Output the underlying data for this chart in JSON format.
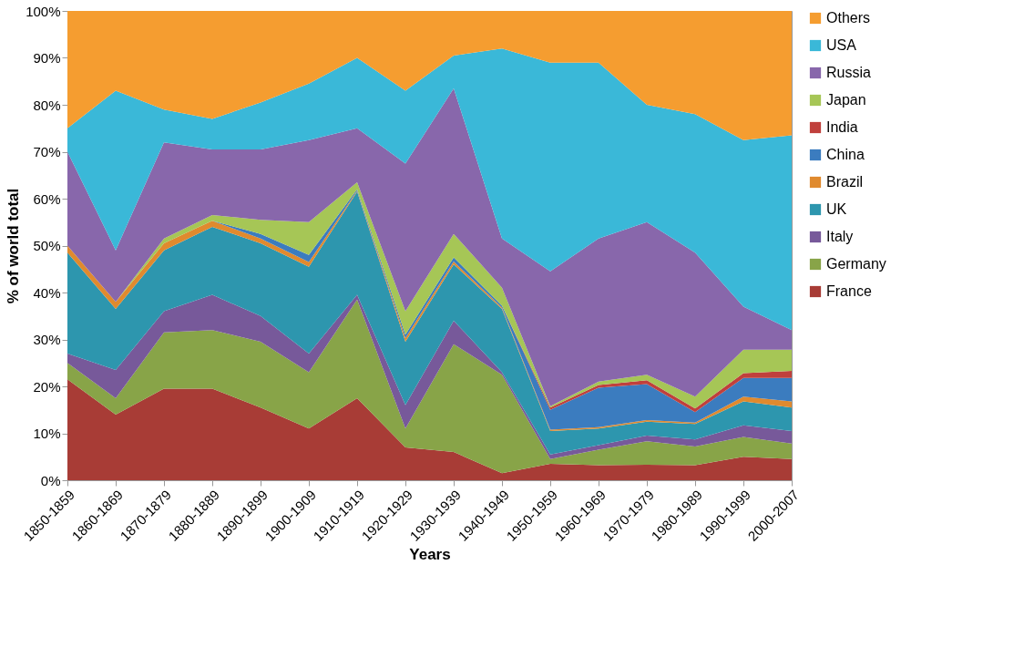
{
  "chart_data": {
    "type": "area",
    "stacked": true,
    "xlabel": "Years",
    "ylabel": "% of world total",
    "categories": [
      "1850-1859",
      "1860-1869",
      "1870-1879",
      "1880-1889",
      "1890-1899",
      "1900-1909",
      "1910-1919",
      "1920-1929",
      "1930-1939",
      "1940-1949",
      "1950-1959",
      "1960-1969",
      "1970-1979",
      "1980-1989",
      "1990-1999",
      "2000-2007"
    ],
    "ylim": [
      0,
      100
    ],
    "yticks": [
      {
        "value": 0,
        "label": "0%"
      },
      {
        "value": 10,
        "label": "10%"
      },
      {
        "value": 20,
        "label": "20%"
      },
      {
        "value": 30,
        "label": "30%"
      },
      {
        "value": 40,
        "label": "40%"
      },
      {
        "value": 50,
        "label": "50%"
      },
      {
        "value": 60,
        "label": "60%"
      },
      {
        "value": 70,
        "label": "70%"
      },
      {
        "value": 80,
        "label": "80%"
      },
      {
        "value": 90,
        "label": "90%"
      },
      {
        "value": 100,
        "label": "100%"
      }
    ],
    "legend": "right",
    "grid": false,
    "series": [
      {
        "name": "France",
        "color": "#a83c36",
        "values": [
          21.5,
          14,
          19.5,
          19.5,
          15.5,
          11,
          17.5,
          7,
          6,
          1.5,
          3.5,
          3.2,
          3.3,
          3.2,
          5,
          4.5
        ]
      },
      {
        "name": "Germany",
        "color": "#88a448",
        "values": [
          3.5,
          3.5,
          12,
          12.5,
          14,
          12,
          21,
          4,
          23,
          21,
          1,
          3.3,
          5,
          4,
          4.2,
          3.3
        ]
      },
      {
        "name": "Italy",
        "color": "#77599a",
        "values": [
          2,
          6,
          4.5,
          7.5,
          5.5,
          4,
          1,
          5,
          5,
          0.5,
          1,
          1,
          1.2,
          1.5,
          2.5,
          2.7
        ]
      },
      {
        "name": "UK",
        "color": "#2d96ae",
        "values": [
          21.5,
          13,
          13,
          14.5,
          15.5,
          18.5,
          22,
          13.5,
          12,
          13.5,
          5,
          3.5,
          3,
          3.3,
          5.1,
          5
        ]
      },
      {
        "name": "Brazil",
        "color": "#e08a2e",
        "values": [
          1.5,
          1.5,
          1.5,
          1.3,
          1,
          1,
          0.2,
          0.8,
          0.6,
          0.3,
          0.3,
          0.3,
          0.3,
          0.3,
          1,
          1.3
        ]
      },
      {
        "name": "China",
        "color": "#3b7cbf",
        "values": [
          0,
          0,
          0,
          0,
          1,
          1.5,
          0.3,
          0.7,
          0.9,
          0.4,
          4.2,
          8.4,
          7.7,
          2.2,
          4,
          5
        ]
      },
      {
        "name": "India",
        "color": "#c0403c",
        "values": [
          0,
          0,
          0,
          0,
          0,
          0,
          0,
          0,
          0,
          0,
          0.5,
          0.6,
          0.8,
          0.8,
          1,
          1.5
        ]
      },
      {
        "name": "Japan",
        "color": "#a6c656",
        "values": [
          0,
          0,
          1,
          1.2,
          3,
          7,
          1.5,
          5,
          5,
          3.8,
          0.3,
          0.7,
          1.2,
          2.5,
          5,
          4.5
        ]
      },
      {
        "name": "Russia",
        "color": "#8867ab",
        "values": [
          20,
          11,
          20.5,
          14,
          15,
          17.5,
          11.5,
          31.5,
          31,
          10.5,
          28.7,
          30.5,
          32.5,
          30.7,
          9.2,
          4.2
        ]
      },
      {
        "name": "USA",
        "color": "#3ab8d8",
        "values": [
          5,
          34,
          7,
          6.5,
          10,
          12,
          15,
          15.5,
          7,
          40.5,
          44.5,
          37.5,
          25,
          29.5,
          35.5,
          41.5
        ]
      },
      {
        "name": "Others",
        "color": "#f59d30",
        "values": [
          25,
          17,
          21,
          23,
          19.5,
          15.5,
          10,
          17,
          9.5,
          8,
          11,
          11,
          20,
          22,
          27.5,
          26.5
        ]
      }
    ]
  }
}
